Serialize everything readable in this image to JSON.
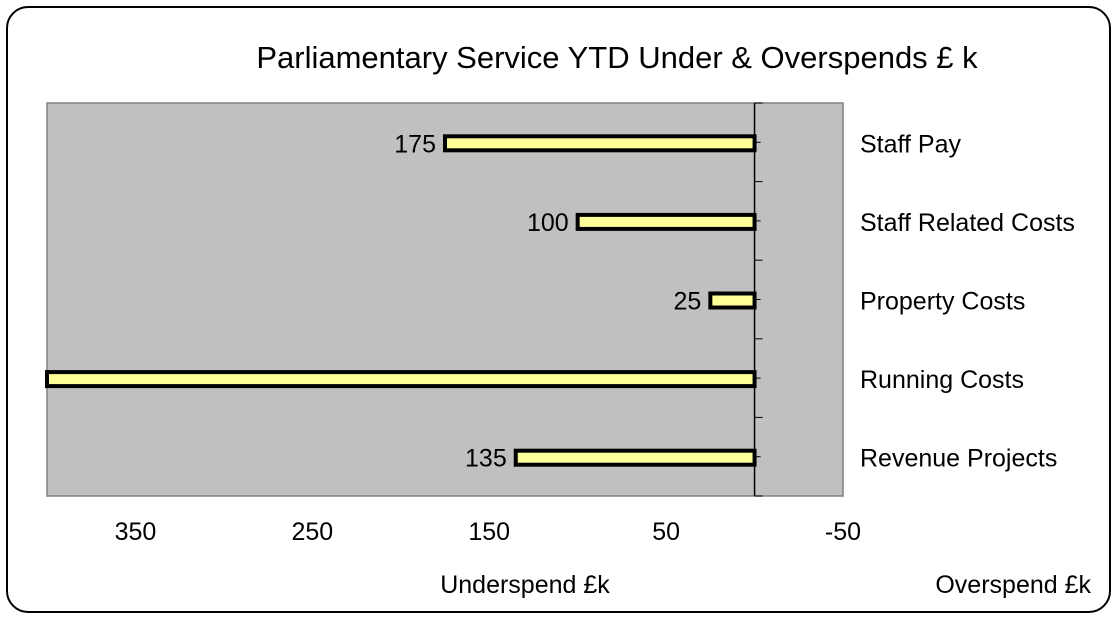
{
  "chart_data": {
    "type": "bar",
    "orientation": "horizontal",
    "x_reversed": true,
    "title": "Parliamentary Service YTD Under & Overspends £ k",
    "categories": [
      "Staff Pay",
      "Staff Related Costs",
      "Property Costs",
      "Running Costs",
      "Revenue Projects"
    ],
    "values": [
      175,
      100,
      25,
      400,
      135
    ],
    "data_labels": [
      "175",
      "100",
      "25",
      "",
      "135"
    ],
    "xlim": [
      400,
      -50
    ],
    "x_ticks": [
      350,
      250,
      150,
      50,
      -50
    ],
    "x_tick_labels": [
      "350",
      "250",
      "150",
      "50",
      "-50"
    ],
    "xlabel_left": "Underspend £k",
    "xlabel_right": "Overspend £k",
    "plot_background": "#c0c0c0",
    "bar_color": "#ffff99",
    "bar_border": "#000000",
    "grid": false
  }
}
